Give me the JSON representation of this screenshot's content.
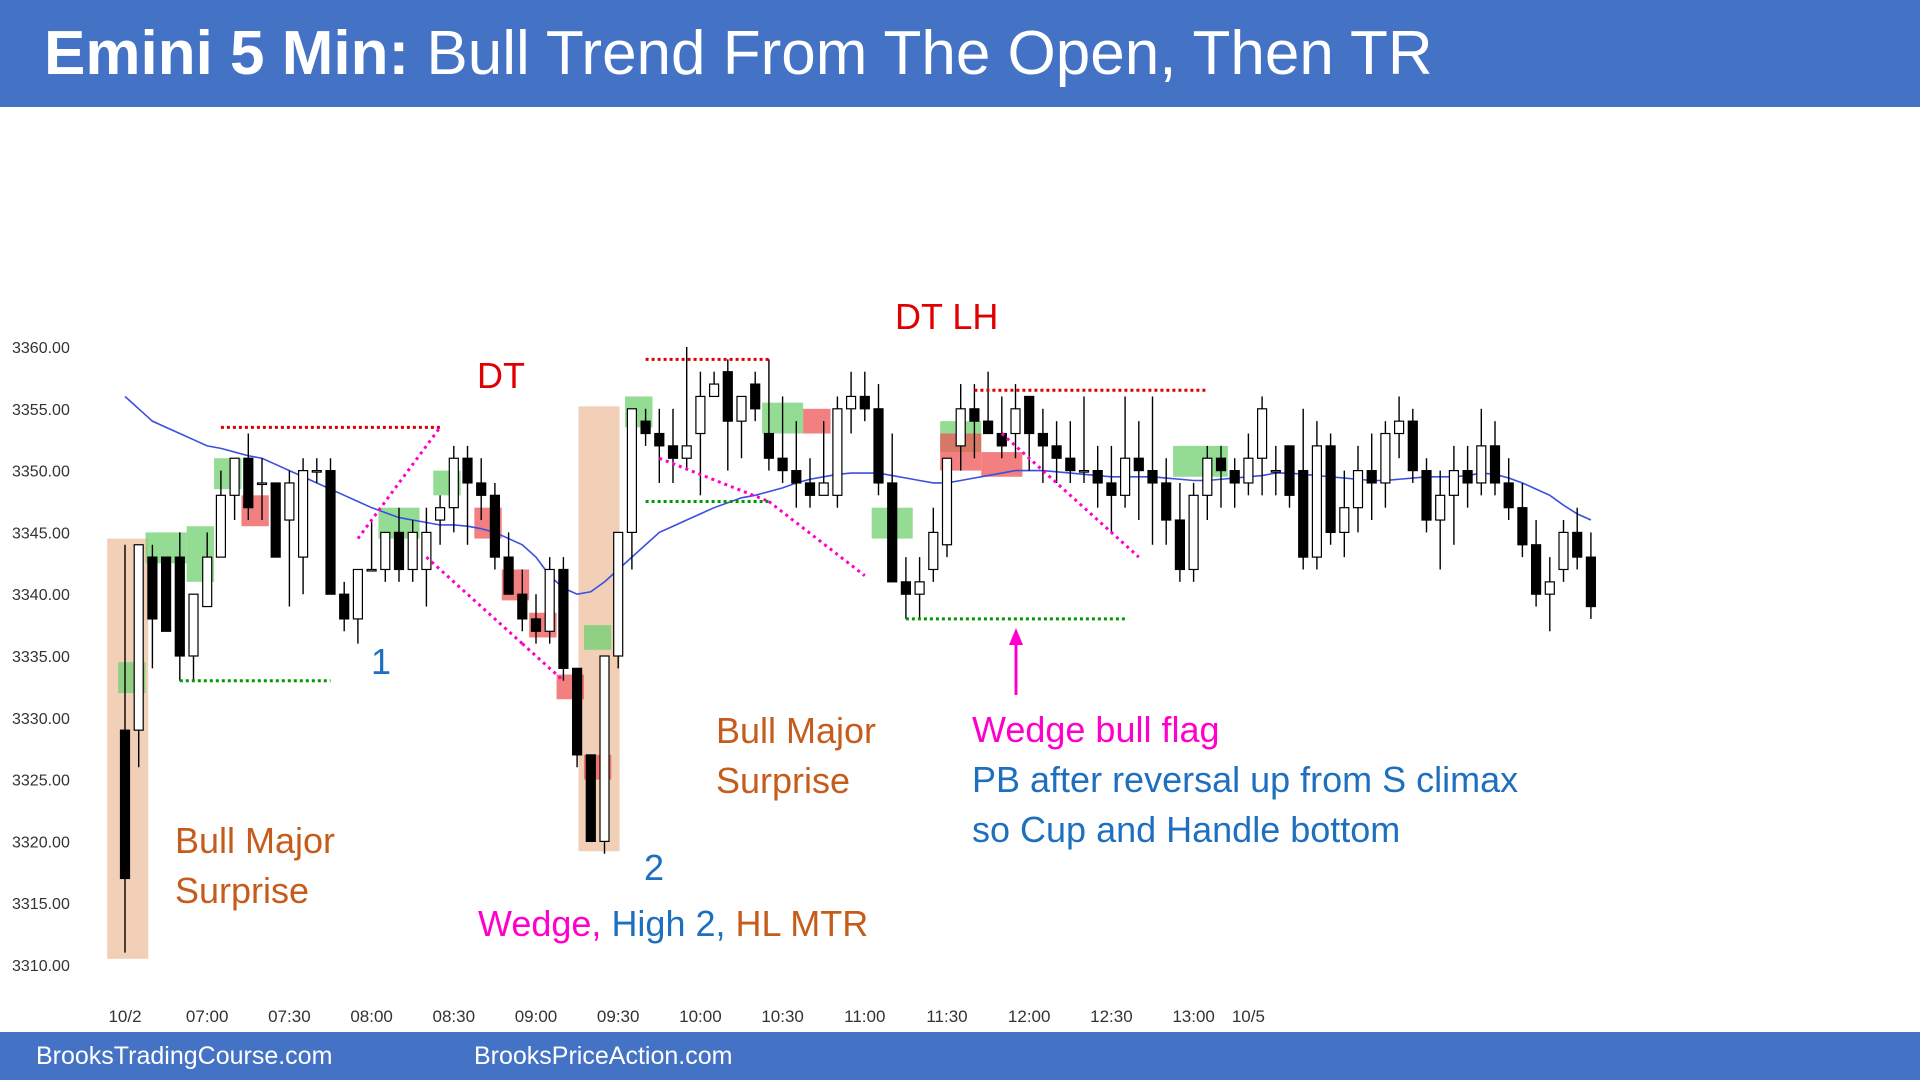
{
  "header": {
    "title_bold": "Emini 5 Min:",
    "title_rest": " Bull Trend From The Open, Then TR"
  },
  "footer": {
    "left": "BrooksTradingCourse.com",
    "right": "BrooksPriceAction.com"
  },
  "colors": {
    "bar_blue": "#4472c4",
    "bull_box": "#70d070",
    "bear_box": "#ee5555",
    "surprise_box": "#f0c8ac",
    "ema": "#3b4fe0",
    "magenta": "#ff00cc",
    "red": "#e00000",
    "green_dot": "#009900",
    "blue_text": "#1f6fbf",
    "orange_text": "#c65c1c"
  },
  "annotations": {
    "dt1": "DT",
    "dt_lh": "DT LH",
    "label1": "1",
    "label2": "2",
    "bull_major_1a": "Bull Major",
    "bull_major_1b": "Surprise",
    "bull_major_2a": "Bull Major",
    "bull_major_2b": "Surprise",
    "wedge": "Wedge,",
    "high2": "High 2,",
    "hlmtr": "HL MTR",
    "wedge_bull_flag": "Wedge bull flag",
    "pb_line1": "PB after reversal up from S climax",
    "pb_line2": "so Cup and Handle bottom"
  },
  "chart_data": {
    "type": "candlestick",
    "y_ticks": [
      "3310.00",
      "3315.00",
      "3320.00",
      "3325.00",
      "3330.00",
      "3335.00",
      "3340.00",
      "3345.00",
      "3350.00",
      "3355.00",
      "3360.00"
    ],
    "y_tick_values": [
      3310,
      3315,
      3320,
      3325,
      3330,
      3335,
      3340,
      3345,
      3350,
      3355,
      3360
    ],
    "ylim": [
      3310,
      3360
    ],
    "x_tick_labels": [
      {
        "label": "10/2",
        "bar": 0
      },
      {
        "label": "07:00",
        "bar": 6
      },
      {
        "label": "07:30",
        "bar": 12
      },
      {
        "label": "08:00",
        "bar": 18
      },
      {
        "label": "08:30",
        "bar": 24
      },
      {
        "label": "09:00",
        "bar": 30
      },
      {
        "label": "09:30",
        "bar": 36
      },
      {
        "label": "10:00",
        "bar": 42
      },
      {
        "label": "10:30",
        "bar": 48
      },
      {
        "label": "11:00",
        "bar": 54
      },
      {
        "label": "11:30",
        "bar": 60
      },
      {
        "label": "12:00",
        "bar": 66
      },
      {
        "label": "12:30",
        "bar": 72
      },
      {
        "label": "13:00",
        "bar": 78
      },
      {
        "label": "10/5",
        "bar": 82
      }
    ],
    "bars": [
      [
        3329,
        3344,
        3311,
        3317
      ],
      [
        3329,
        3344,
        3326,
        3344
      ],
      [
        3343,
        3344,
        3334,
        3338
      ],
      [
        3343,
        3343,
        3337,
        3337
      ],
      [
        3343,
        3345,
        3333,
        3335
      ],
      [
        3335,
        3340,
        3333,
        3340
      ],
      [
        3339,
        3345,
        3339,
        3343
      ],
      [
        3343,
        3350,
        3343,
        3348
      ],
      [
        3348,
        3351,
        3346,
        3351
      ],
      [
        3351,
        3353,
        3346,
        3347
      ],
      [
        3349,
        3351,
        3346,
        3349
      ],
      [
        3349,
        3349,
        3343,
        3343
      ],
      [
        3346,
        3350,
        3339,
        3349
      ],
      [
        3343,
        3351,
        3340,
        3350
      ],
      [
        3350,
        3351,
        3349,
        3350
      ],
      [
        3350,
        3351,
        3340,
        3340
      ],
      [
        3340,
        3341,
        3337,
        3338
      ],
      [
        3338,
        3342,
        3336,
        3342
      ],
      [
        3342,
        3346,
        3342,
        3342
      ],
      [
        3342,
        3345,
        3341,
        3345
      ],
      [
        3345,
        3347,
        3341,
        3342
      ],
      [
        3342,
        3346,
        3341,
        3345
      ],
      [
        3342,
        3347,
        3339,
        3345
      ],
      [
        3346,
        3348,
        3344,
        3347
      ],
      [
        3347,
        3352,
        3345,
        3351
      ],
      [
        3351,
        3352,
        3344,
        3349
      ],
      [
        3349,
        3351,
        3346,
        3348
      ],
      [
        3348,
        3349,
        3342,
        3343
      ],
      [
        3343,
        3345,
        3340,
        3340
      ],
      [
        3340,
        3342,
        3337,
        3338
      ],
      [
        3338,
        3340,
        3336,
        3337
      ],
      [
        3337,
        3343,
        3336,
        3342
      ],
      [
        3342,
        3343,
        3333,
        3334
      ],
      [
        3334,
        3334,
        3326,
        3327
      ],
      [
        3327,
        3327,
        3320,
        3320
      ],
      [
        3320,
        3335,
        3319,
        3335
      ],
      [
        3335,
        3345,
        3334,
        3345
      ],
      [
        3345,
        3355,
        3342,
        3355
      ],
      [
        3354,
        3355,
        3352,
        3353
      ],
      [
        3353,
        3355,
        3349,
        3352
      ],
      [
        3352,
        3355,
        3349,
        3351
      ],
      [
        3351,
        3360,
        3350,
        3352
      ],
      [
        3353,
        3358,
        3348,
        3356
      ],
      [
        3356,
        3358,
        3356,
        3357
      ],
      [
        3358,
        3359,
        3350,
        3354
      ],
      [
        3354,
        3355,
        3351,
        3356
      ],
      [
        3357,
        3358,
        3354,
        3355
      ],
      [
        3353,
        3359,
        3350,
        3351
      ],
      [
        3351,
        3356,
        3349,
        3350
      ],
      [
        3350,
        3354,
        3347,
        3349
      ],
      [
        3349,
        3351,
        3347,
        3348
      ],
      [
        3348,
        3354,
        3348,
        3349
      ],
      [
        3348,
        3356,
        3347,
        3355
      ],
      [
        3355,
        3358,
        3353,
        3356
      ],
      [
        3356,
        3358,
        3354,
        3355
      ],
      [
        3355,
        3357,
        3348,
        3349
      ],
      [
        3349,
        3353,
        3341,
        3341
      ],
      [
        3341,
        3343,
        3338,
        3340
      ],
      [
        3340,
        3343,
        3338,
        3341
      ],
      [
        3342,
        3347,
        3341,
        3345
      ],
      [
        3344,
        3351,
        3343,
        3351
      ],
      [
        3352,
        3357,
        3350,
        3355
      ],
      [
        3355,
        3357,
        3351,
        3354
      ],
      [
        3354,
        3358,
        3353,
        3353
      ],
      [
        3353,
        3356,
        3351,
        3352
      ],
      [
        3353,
        3357,
        3351,
        3355
      ],
      [
        3356,
        3356,
        3350,
        3353
      ],
      [
        3353,
        3355,
        3349,
        3352
      ],
      [
        3352,
        3354,
        3349,
        3351
      ],
      [
        3351,
        3354,
        3349,
        3350
      ],
      [
        3350,
        3356,
        3349,
        3350
      ],
      [
        3350,
        3352,
        3347,
        3349
      ],
      [
        3349,
        3352,
        3345,
        3348
      ],
      [
        3348,
        3356,
        3347,
        3351
      ],
      [
        3351,
        3354,
        3346,
        3350
      ],
      [
        3350,
        3356,
        3344,
        3349
      ],
      [
        3349,
        3351,
        3344,
        3346
      ],
      [
        3346,
        3349,
        3341,
        3342
      ],
      [
        3342,
        3349,
        3341,
        3348
      ],
      [
        3348,
        3352,
        3346,
        3351
      ],
      [
        3351,
        3352,
        3347,
        3350
      ],
      [
        3350,
        3351,
        3347,
        3349
      ],
      [
        3349,
        3353,
        3348,
        3351
      ],
      [
        3351,
        3356,
        3348,
        3355
      ],
      [
        3350,
        3352,
        3348,
        3350
      ],
      [
        3352,
        3352,
        3347,
        3348
      ],
      [
        3350,
        3355,
        3342,
        3343
      ],
      [
        3343,
        3354,
        3342,
        3352
      ],
      [
        3352,
        3353,
        3344,
        3345
      ],
      [
        3345,
        3350,
        3343,
        3347
      ],
      [
        3347,
        3352,
        3345,
        3350
      ],
      [
        3350,
        3353,
        3346,
        3349
      ],
      [
        3349,
        3354,
        3347,
        3353
      ],
      [
        3353,
        3356,
        3351,
        3354
      ],
      [
        3354,
        3355,
        3349,
        3350
      ],
      [
        3350,
        3351,
        3345,
        3346
      ],
      [
        3346,
        3350,
        3342,
        3348
      ],
      [
        3348,
        3352,
        3344,
        3350
      ],
      [
        3350,
        3352,
        3347,
        3349
      ],
      [
        3349,
        3355,
        3348,
        3352
      ],
      [
        3352,
        3354,
        3348,
        3349
      ],
      [
        3349,
        3351,
        3346,
        3347
      ],
      [
        3347,
        3349,
        3343,
        3344
      ],
      [
        3344,
        3346,
        3339,
        3340
      ],
      [
        3340,
        3343,
        3337,
        3341
      ],
      [
        3342,
        3346,
        3341,
        3345
      ],
      [
        3345,
        3347,
        3342,
        3343
      ],
      [
        3343,
        3345,
        3338,
        3339
      ]
    ],
    "ema": [
      3356,
      3355,
      3354,
      3353.5,
      3353,
      3352.5,
      3352,
      3351.8,
      3351.5,
      3351.2,
      3351,
      3350.5,
      3350,
      3349.5,
      3349,
      3348.5,
      3348,
      3347.5,
      3347,
      3346.6,
      3346.2,
      3346,
      3345.8,
      3345.6,
      3345.6,
      3345.5,
      3345.3,
      3345,
      3344.5,
      3344,
      3343,
      3341.5,
      3340.5,
      3340,
      3340.2,
      3341,
      3342,
      3343,
      3344,
      3345,
      3345.5,
      3346,
      3346.5,
      3347,
      3347.4,
      3347.8,
      3348,
      3348.3,
      3348.6,
      3349,
      3349.3,
      3349.5,
      3349.7,
      3349.8,
      3349.8,
      3349.8,
      3349.6,
      3349.4,
      3349.2,
      3349,
      3349,
      3349.2,
      3349.4,
      3349.6,
      3349.8,
      3350,
      3350,
      3350,
      3349.9,
      3349.8,
      3349.7,
      3349.6,
      3349.5,
      3349.5,
      3349.5,
      3349.5,
      3349.4,
      3349.3,
      3349.2,
      3349.2,
      3349.3,
      3349.4,
      3349.5,
      3349.6,
      3349.8,
      3349.8,
      3349.7,
      3349.6,
      3349.5,
      3349.4,
      3349.3,
      3349.2,
      3349.2,
      3349.3,
      3349.4,
      3349.5,
      3349.5,
      3349.5,
      3349.6,
      3349.8,
      3349.7,
      3349.4,
      3349,
      3348.5,
      3348,
      3347.2,
      3346.5,
      3346
    ]
  }
}
